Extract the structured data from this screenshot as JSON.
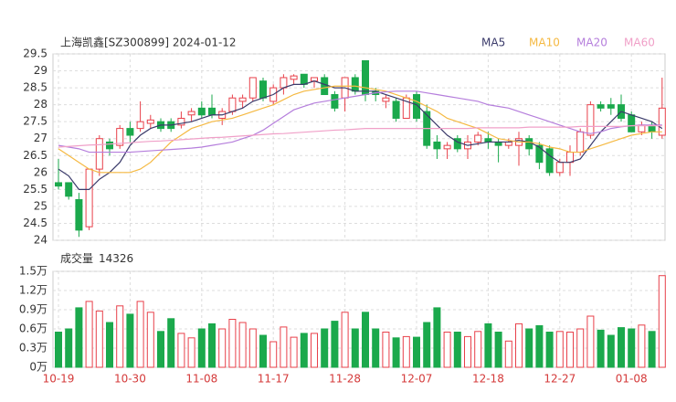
{
  "chart_data": [
    {
      "type": "candlestick",
      "title": "上海凯鑫[SZ300899] 2024-01-12",
      "categories": [
        "10-19",
        null,
        null,
        null,
        null,
        null,
        null,
        "10-30",
        null,
        null,
        null,
        null,
        null,
        null,
        "11-08",
        null,
        null,
        null,
        null,
        null,
        null,
        "11-17",
        null,
        null,
        null,
        null,
        null,
        null,
        "11-28",
        null,
        null,
        null,
        null,
        null,
        null,
        "12-07",
        null,
        null,
        null,
        null,
        null,
        null,
        "12-18",
        null,
        null,
        null,
        null,
        null,
        null,
        "12-27",
        null,
        null,
        null,
        null,
        null,
        null,
        "01-08",
        null,
        null,
        null
      ],
      "open": [
        25.7,
        25.7,
        25.2,
        24.4,
        26.1,
        26.9,
        26.8,
        27.3,
        27.3,
        27.45,
        27.5,
        27.5,
        27.4,
        27.7,
        27.9,
        27.9,
        27.6,
        27.8,
        28.1,
        28.2,
        28.7,
        28.1,
        28.5,
        28.75,
        28.9,
        28.7,
        28.8,
        28.3,
        28.2,
        28.8,
        29.3,
        28.4,
        28.1,
        28.1,
        27.6,
        28.3,
        27.8,
        26.9,
        26.7,
        27.0,
        26.7,
        26.9,
        27.0,
        26.9,
        26.8,
        26.8,
        27.0,
        26.8,
        26.7,
        26.0,
        26.3,
        26.6,
        27.1,
        28.0,
        28.0,
        28.0,
        27.7,
        27.2,
        27.4,
        27.1
      ],
      "high": [
        26.4,
        25.7,
        25.4,
        26.1,
        27.1,
        27.0,
        27.4,
        27.5,
        28.1,
        27.7,
        27.6,
        27.6,
        27.8,
        27.9,
        28.1,
        28.3,
        27.9,
        28.3,
        28.3,
        28.8,
        28.8,
        28.6,
        28.9,
        28.9,
        28.9,
        28.8,
        28.9,
        28.4,
        28.8,
        28.9,
        29.3,
        28.5,
        28.3,
        28.2,
        28.3,
        28.4,
        28.0,
        27.1,
        26.9,
        27.1,
        27.1,
        27.2,
        27.2,
        27.0,
        27.0,
        27.2,
        27.1,
        26.9,
        26.8,
        26.4,
        26.8,
        27.3,
        28.1,
        28.1,
        28.2,
        28.3,
        27.8,
        27.5,
        27.5,
        28.8
      ],
      "low": [
        25.5,
        25.2,
        24.1,
        24.3,
        25.9,
        26.5,
        26.7,
        26.9,
        27.2,
        27.3,
        27.2,
        27.2,
        27.3,
        27.5,
        27.6,
        27.6,
        27.4,
        27.7,
        27.9,
        28.1,
        28.1,
        28.0,
        28.3,
        28.6,
        28.5,
        28.5,
        28.3,
        27.8,
        27.8,
        28.3,
        28.1,
        28.1,
        27.9,
        27.5,
        27.6,
        27.5,
        26.7,
        26.4,
        26.4,
        26.6,
        26.4,
        26.8,
        26.7,
        26.3,
        26.7,
        26.2,
        26.5,
        26.1,
        25.9,
        25.9,
        25.9,
        26.5,
        27.0,
        27.8,
        27.7,
        27.5,
        27.2,
        27.1,
        27.0,
        27.0
      ],
      "close": [
        25.6,
        25.3,
        24.3,
        26.1,
        27.0,
        26.7,
        27.3,
        27.1,
        27.5,
        27.55,
        27.3,
        27.3,
        27.6,
        27.8,
        27.7,
        27.7,
        27.8,
        28.2,
        28.2,
        28.8,
        28.2,
        28.5,
        28.8,
        28.85,
        28.6,
        28.8,
        28.3,
        27.9,
        28.8,
        28.4,
        28.3,
        28.3,
        28.2,
        27.6,
        28.2,
        27.6,
        26.8,
        26.7,
        26.8,
        26.7,
        26.9,
        27.1,
        26.9,
        26.8,
        26.9,
        27.0,
        26.7,
        26.3,
        26.0,
        26.3,
        26.6,
        27.2,
        28.0,
        27.9,
        27.9,
        27.6,
        27.2,
        27.4,
        27.2,
        27.9
      ],
      "up_color": "#e8404a",
      "down_color": "#1ba94c",
      "series": [
        {
          "name": "MA5",
          "color": "#3a3a6a",
          "values": [
            26.1,
            25.9,
            25.5,
            25.5,
            25.8,
            26.0,
            26.3,
            26.8,
            27.1,
            27.3,
            27.4,
            27.4,
            27.45,
            27.5,
            27.6,
            27.7,
            27.7,
            27.8,
            27.9,
            28.1,
            28.2,
            28.3,
            28.5,
            28.6,
            28.6,
            28.7,
            28.6,
            28.5,
            28.5,
            28.4,
            28.4,
            28.4,
            28.3,
            28.2,
            28.1,
            28.0,
            27.7,
            27.4,
            27.1,
            26.9,
            26.8,
            26.85,
            26.9,
            26.9,
            26.9,
            26.95,
            26.9,
            26.75,
            26.5,
            26.3,
            26.3,
            26.4,
            26.8,
            27.2,
            27.5,
            27.8,
            27.7,
            27.6,
            27.5,
            27.3
          ]
        },
        {
          "name": "MA10",
          "color": "#f5b942",
          "values": [
            26.7,
            26.5,
            26.3,
            26.1,
            26.0,
            26.0,
            26.0,
            26.0,
            26.1,
            26.3,
            26.6,
            26.9,
            27.1,
            27.3,
            27.4,
            27.5,
            27.55,
            27.6,
            27.7,
            27.8,
            27.9,
            28.0,
            28.15,
            28.3,
            28.4,
            28.45,
            28.5,
            28.55,
            28.55,
            28.55,
            28.5,
            28.45,
            28.4,
            28.3,
            28.2,
            28.1,
            27.95,
            27.8,
            27.6,
            27.5,
            27.4,
            27.3,
            27.15,
            27.0,
            26.95,
            26.9,
            26.9,
            26.85,
            26.75,
            26.7,
            26.6,
            26.6,
            26.7,
            26.8,
            26.9,
            27.0,
            27.1,
            27.15,
            27.2,
            27.2
          ]
        },
        {
          "name": "MA20",
          "color": "#b57edc",
          "values": [
            26.8,
            26.75,
            26.7,
            26.6,
            26.6,
            26.6,
            26.6,
            26.6,
            26.62,
            26.64,
            26.66,
            26.68,
            26.7,
            26.72,
            26.75,
            26.8,
            26.85,
            26.9,
            27.0,
            27.1,
            27.25,
            27.45,
            27.65,
            27.85,
            27.95,
            28.05,
            28.1,
            28.15,
            28.2,
            28.25,
            28.3,
            28.35,
            28.38,
            28.4,
            28.4,
            28.4,
            28.35,
            28.3,
            28.25,
            28.2,
            28.15,
            28.1,
            28.0,
            27.95,
            27.9,
            27.8,
            27.7,
            27.6,
            27.5,
            27.4,
            27.3,
            27.2,
            27.15,
            27.2,
            27.3,
            27.35,
            27.38,
            27.4,
            27.4,
            27.4
          ]
        },
        {
          "name": "MA60",
          "color": "#f0a0c8",
          "values": [
            26.75,
            26.77,
            26.79,
            26.81,
            26.82,
            26.84,
            26.86,
            26.88,
            26.9,
            26.92,
            26.93,
            26.95,
            26.97,
            26.99,
            27.01,
            27.03,
            27.04,
            27.06,
            27.08,
            27.1,
            27.12,
            27.14,
            27.15,
            27.17,
            27.19,
            27.21,
            27.23,
            27.25,
            27.26,
            27.28,
            27.3,
            27.3,
            27.3,
            27.3,
            27.3,
            27.3,
            27.3,
            27.3,
            27.3,
            27.3,
            27.3,
            27.32,
            27.32,
            27.32,
            27.32,
            27.32,
            27.34,
            27.34,
            27.34,
            27.34,
            27.34,
            27.36,
            27.36,
            27.36,
            27.36,
            27.36,
            27.38,
            27.38,
            27.38,
            27.38
          ]
        }
      ],
      "ylim": [
        24,
        29.5
      ],
      "yticks": [
        24,
        24.5,
        25,
        25.5,
        26,
        26.5,
        27,
        27.5,
        28,
        28.5,
        29,
        29.5
      ],
      "grid": true
    },
    {
      "type": "bar",
      "title": "成交量",
      "values": [
        5500,
        6000,
        9300,
        10300,
        8800,
        7000,
        9600,
        8300,
        10300,
        8600,
        5600,
        7600,
        5300,
        4600,
        6000,
        6800,
        6000,
        7500,
        7000,
        6000,
        5000,
        4000,
        6300,
        4700,
        5300,
        5300,
        6000,
        7200,
        8600,
        6000,
        8600,
        6000,
        5500,
        4600,
        4800,
        4700,
        7000,
        9300,
        5500,
        5500,
        4800,
        5600,
        6800,
        5500,
        4100,
        6800,
        6000,
        6500,
        5500,
        5600,
        5500,
        6000,
        8000,
        5800,
        5000,
        6200,
        6000,
        6600,
        5600,
        14326
      ],
      "ylim": [
        0,
        15000
      ],
      "yticks": [
        {
          "value": 0,
          "label": "0万"
        },
        {
          "value": 3000,
          "label": "0.3万"
        },
        {
          "value": 6000,
          "label": "0.6万"
        },
        {
          "value": 9000,
          "label": "0.9万"
        },
        {
          "value": 12000,
          "label": "1.2万"
        },
        {
          "value": 15000,
          "label": "1.5万"
        }
      ],
      "grid": true
    }
  ]
}
